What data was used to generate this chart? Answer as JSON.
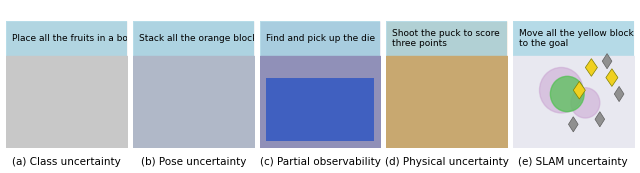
{
  "panels": [
    {
      "label": "(a) Class uncertainty",
      "caption": "Place all the fruits in a bowl",
      "bg_color": "#c8c8c8",
      "caption_bg": "#add8e6"
    },
    {
      "label": "(b) Pose uncertainty",
      "caption": "Stack all the orange blocks",
      "bg_color": "#b0b8c8",
      "caption_bg": "#add8e6"
    },
    {
      "label": "(c) Partial observability",
      "caption": "Find and pick up the die",
      "bg_color": "#9090b8",
      "caption_bg": "#add8e6"
    },
    {
      "label": "(d) Physical uncertainty",
      "caption": "Shoot the puck to score\nthree points",
      "bg_color": "#c8a870",
      "caption_bg": "#add8e6"
    },
    {
      "label": "(e) SLAM uncertainty",
      "caption": "Move all the yellow blocks\nto the goal",
      "bg_color": "#e8e8f0",
      "caption_bg": "#add8e6"
    }
  ],
  "figure_bg": "#ffffff",
  "label_fontsize": 7.5,
  "caption_fontsize": 6.5,
  "label_color": "#000000",
  "caption_color": "#000000"
}
